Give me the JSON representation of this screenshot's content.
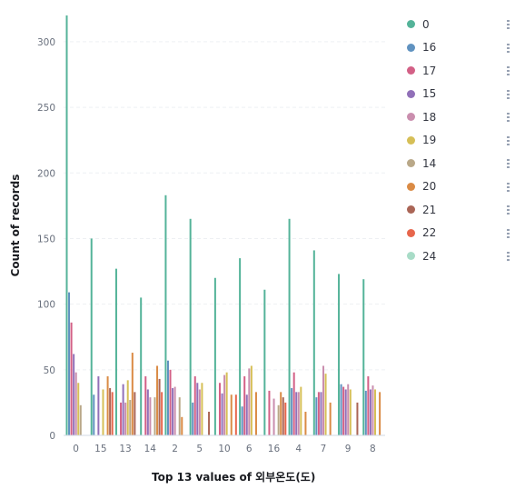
{
  "chart_data": {
    "type": "bar",
    "xlabel": "Top 13 values of 외부온도(도)",
    "ylabel": "Count of records",
    "ylim": [
      0,
      320
    ],
    "yticks": [
      0,
      50,
      100,
      150,
      200,
      250,
      300
    ],
    "categories": [
      "0",
      "15",
      "13",
      "14",
      "2",
      "5",
      "10",
      "6",
      "16",
      "4",
      "7",
      "9",
      "8"
    ],
    "series": [
      {
        "name": "0",
        "color": "#54b399",
        "values": [
          320,
          150,
          127,
          105,
          183,
          165,
          120,
          135,
          111,
          165,
          141,
          123,
          119
        ]
      },
      {
        "name": "16",
        "color": "#6092c0",
        "values": [
          109,
          31,
          0,
          0,
          57,
          25,
          0,
          22,
          0,
          36,
          29,
          39,
          34
        ]
      },
      {
        "name": "17",
        "color": "#d36086",
        "values": [
          86,
          0,
          25,
          45,
          50,
          45,
          40,
          45,
          34,
          48,
          33,
          37,
          45
        ]
      },
      {
        "name": "15",
        "color": "#9170b8",
        "values": [
          62,
          45,
          39,
          35,
          36,
          40,
          32,
          31,
          0,
          33,
          33,
          35,
          35
        ]
      },
      {
        "name": "18",
        "color": "#ca8eae",
        "values": [
          48,
          0,
          25,
          29,
          37,
          35,
          46,
          51,
          28,
          33,
          53,
          39,
          38
        ]
      },
      {
        "name": "19",
        "color": "#d6bf57",
        "values": [
          40,
          35,
          42,
          0,
          0,
          40,
          48,
          53,
          0,
          37,
          47,
          35,
          35
        ]
      },
      {
        "name": "14",
        "color": "#b9a888",
        "values": [
          23,
          0,
          27,
          29,
          29,
          0,
          0,
          0,
          23,
          0,
          0,
          0,
          0
        ]
      },
      {
        "name": "20",
        "color": "#da8b45",
        "values": [
          0,
          45,
          63,
          53,
          14,
          0,
          31,
          33,
          33,
          18,
          25,
          0,
          33
        ]
      },
      {
        "name": "21",
        "color": "#aa6556",
        "values": [
          0,
          36,
          33,
          43,
          0,
          18,
          0,
          0,
          29,
          0,
          0,
          25,
          0
        ]
      },
      {
        "name": "22",
        "color": "#e7664c",
        "values": [
          0,
          33,
          0,
          33,
          0,
          0,
          31,
          0,
          25,
          0,
          0,
          0,
          0
        ]
      },
      {
        "name": "24",
        "color": "#a8dcc7",
        "values": [
          0,
          0,
          0,
          0,
          0,
          0,
          0,
          0,
          0,
          0,
          0,
          0,
          0
        ]
      }
    ],
    "legend_position": "right",
    "grid": true
  }
}
